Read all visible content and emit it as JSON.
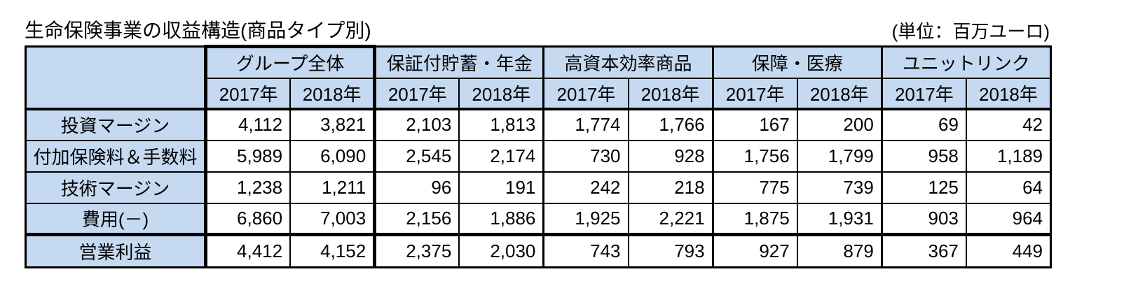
{
  "title": "生命保険事業の収益構造(商品タイプ別)",
  "unit_label": "(単位：百万ユーロ)",
  "table": {
    "groups": [
      {
        "label": "グループ全体"
      },
      {
        "label": "保証付貯蓄・年金"
      },
      {
        "label": "高資本効率商品"
      },
      {
        "label": "保障・医療"
      },
      {
        "label": "ユニットリンク"
      }
    ],
    "years": [
      "2017年",
      "2018年",
      "2017年",
      "2018年",
      "2017年",
      "2018年",
      "2017年",
      "2018年",
      "2017年",
      "2018年"
    ],
    "rows": [
      {
        "label": "投資マージン",
        "values": [
          "4,112",
          "3,821",
          "2,103",
          "1,813",
          "1,774",
          "1,766",
          "167",
          "200",
          "69",
          "42"
        ]
      },
      {
        "label": "付加保険料＆手数料",
        "values": [
          "5,989",
          "6,090",
          "2,545",
          "2,174",
          "730",
          "928",
          "1,756",
          "1,799",
          "958",
          "1,189"
        ]
      },
      {
        "label": "技術マージン",
        "values": [
          "1,238",
          "1,211",
          "96",
          "191",
          "242",
          "218",
          "775",
          "739",
          "125",
          "64"
        ]
      },
      {
        "label": "費用(－)",
        "values": [
          "6,860",
          "7,003",
          "2,156",
          "1,886",
          "1,925",
          "2,221",
          "1,875",
          "1,931",
          "903",
          "964"
        ]
      },
      {
        "label": "営業利益",
        "values": [
          "4,412",
          "4,152",
          "2,375",
          "2,030",
          "743",
          "793",
          "927",
          "879",
          "367",
          "449"
        ]
      }
    ]
  },
  "colors": {
    "header_fill": "#c5d9f1",
    "border": "#000000",
    "cell_background": "#ffffff"
  },
  "chart_data": {
    "type": "table",
    "title": "生命保険事業の収益構造(商品タイプ別)",
    "unit": "百万ユーロ",
    "column_groups": [
      "グループ全体",
      "保証付貯蓄・年金",
      "高資本効率商品",
      "保障・医療",
      "ユニットリンク"
    ],
    "sub_columns": [
      "2017年",
      "2018年"
    ],
    "row_labels": [
      "投資マージン",
      "付加保険料＆手数料",
      "技術マージン",
      "費用(－)",
      "営業利益"
    ],
    "values": [
      [
        4112,
        3821,
        2103,
        1813,
        1774,
        1766,
        167,
        200,
        69,
        42
      ],
      [
        5989,
        6090,
        2545,
        2174,
        730,
        928,
        1756,
        1799,
        958,
        1189
      ],
      [
        1238,
        1211,
        96,
        191,
        242,
        218,
        775,
        739,
        125,
        64
      ],
      [
        6860,
        7003,
        2156,
        1886,
        1925,
        2221,
        1875,
        1931,
        903,
        964
      ],
      [
        4412,
        4152,
        2375,
        2030,
        743,
        793,
        927,
        879,
        367,
        449
      ]
    ]
  }
}
